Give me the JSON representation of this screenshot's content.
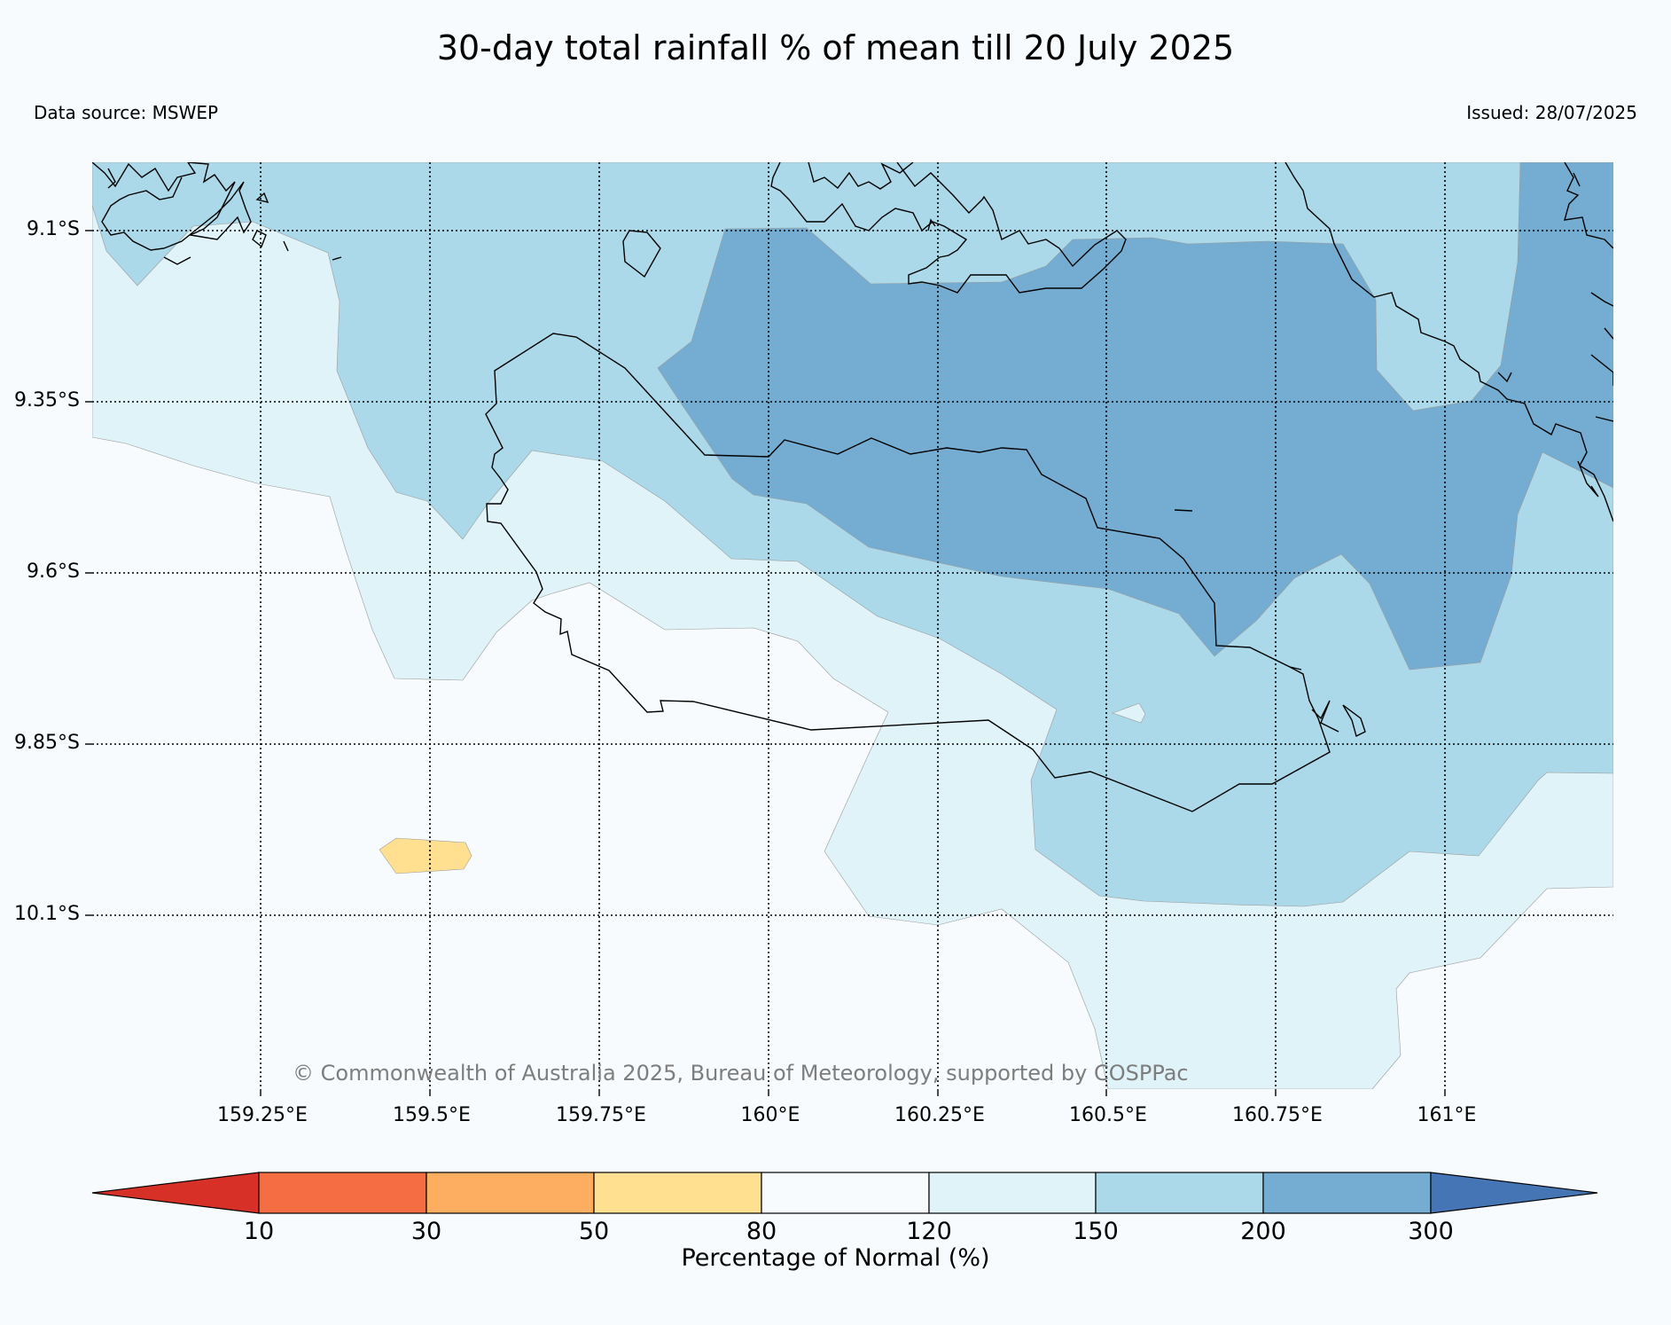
{
  "header": {
    "title": "30-day total rainfall % of mean till 20 July 2025",
    "data_source": "Data source: MSWEP",
    "issued": "Issued: 28/07/2025"
  },
  "map": {
    "lat_labels": [
      {
        "label": "9.1°S",
        "lat": -9.1
      },
      {
        "label": "9.35°S",
        "lat": -9.35
      },
      {
        "label": "9.6°S",
        "lat": -9.6
      },
      {
        "label": "9.85°S",
        "lat": -9.85
      },
      {
        "label": "10.1°S",
        "lat": -10.1
      }
    ],
    "lon_labels": [
      {
        "label": "159.25°E",
        "lon": 159.25
      },
      {
        "label": "159.5°E",
        "lon": 159.5
      },
      {
        "label": "159.75°E",
        "lon": 159.75
      },
      {
        "label": "160°E",
        "lon": 160.0
      },
      {
        "label": "160.25°E",
        "lon": 160.25
      },
      {
        "label": "160.5°E",
        "lon": 160.5
      },
      {
        "label": "160.75°E",
        "lon": 160.75
      },
      {
        "label": "161°E",
        "lon": 161.0
      }
    ],
    "copyright": "© Commonwealth of Australia 2025, Bureau of Meteorology, supported by COSPPac"
  },
  "colorbar": {
    "title": "Percentage of Normal (%)",
    "ticks": [
      "10",
      "30",
      "50",
      "80",
      "120",
      "150",
      "200",
      "300"
    ],
    "colors": {
      "below_10": "#d73027",
      "10-30": "#f46d43",
      "30-50": "#fdae61",
      "50-80": "#fee090",
      "80-120": "#f7fbfd",
      "120-150": "#e0f3f8",
      "150-200": "#abd9e9",
      "200-300": "#74add1",
      "above_300": "#4575b4"
    }
  }
}
